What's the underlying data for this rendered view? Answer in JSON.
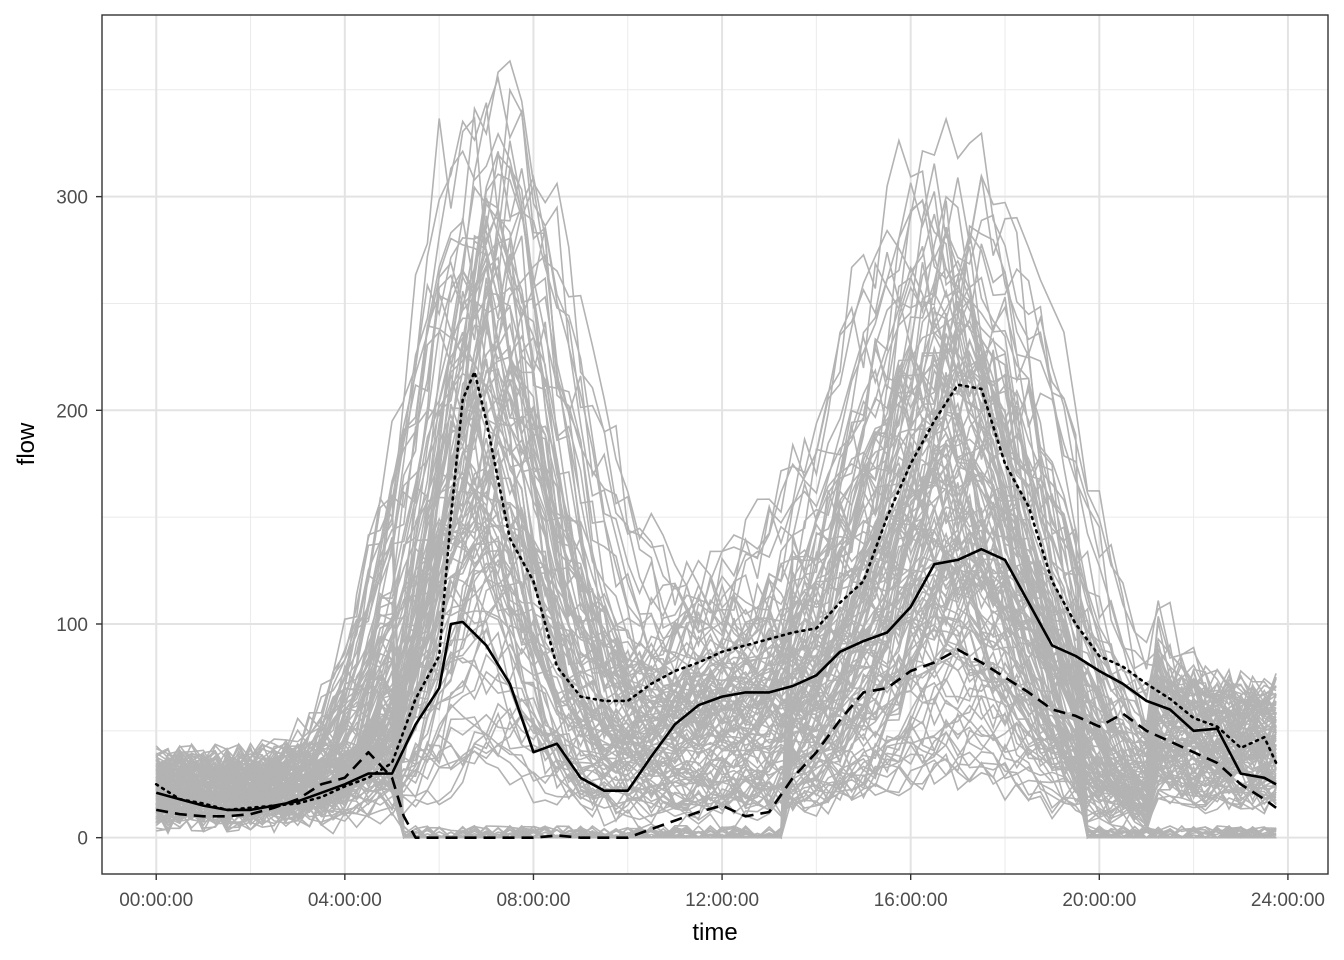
{
  "chart_data": {
    "type": "line",
    "xlabel": "time",
    "ylabel": "flow",
    "x_tick_labels": [
      "00:00:00",
      "04:00:00",
      "08:00:00",
      "12:00:00",
      "16:00:00",
      "20:00:00",
      "24:00:00"
    ],
    "x_tick_hours": [
      0,
      4,
      8,
      12,
      16,
      20,
      24
    ],
    "y_tick_labels": [
      "0",
      "100",
      "200",
      "300"
    ],
    "y_tick_values": [
      0,
      100,
      200,
      300
    ],
    "xlim_hours": [
      -1.15,
      24.85
    ],
    "ylim": [
      -17,
      385
    ],
    "grid": true,
    "background_series": {
      "description": "many daily flow profiles drawn in light grey",
      "color": "#b3b3b3",
      "count": 140
    },
    "summary_series": [
      {
        "style": "solid",
        "color": "#000000",
        "x_hours": [
          0,
          0.5,
          1,
          1.5,
          2,
          2.5,
          3,
          3.5,
          4,
          4.5,
          5,
          5.5,
          6,
          6.25,
          6.5,
          7,
          7.5,
          8,
          8.5,
          9,
          9.5,
          10,
          10.5,
          11,
          11.5,
          12,
          12.5,
          13,
          13.5,
          14,
          14.5,
          15,
          15.5,
          16,
          16.5,
          17,
          17.5,
          18,
          18.5,
          19,
          19.5,
          20,
          20.5,
          21,
          21.5,
          22,
          22.5,
          23,
          23.5,
          23.75
        ],
        "values": [
          21,
          18,
          15,
          13,
          13,
          15,
          17,
          21,
          25,
          30,
          30,
          53,
          70,
          100,
          101,
          90,
          72,
          40,
          44,
          28,
          22,
          22,
          38,
          53,
          62,
          66,
          68,
          68,
          71,
          76,
          87,
          92,
          96,
          108,
          128,
          130,
          135,
          130,
          110,
          90,
          85,
          78,
          72,
          64,
          60,
          50,
          51,
          30,
          28,
          25
        ]
      },
      {
        "style": "dotted",
        "color": "#000000",
        "x_hours": [
          0,
          0.5,
          1,
          1.5,
          2,
          2.5,
          3,
          3.5,
          4,
          4.5,
          5,
          5.5,
          6,
          6.25,
          6.5,
          6.75,
          7,
          7.5,
          8,
          8.5,
          9,
          9.5,
          10,
          10.5,
          11,
          11.5,
          12,
          12.5,
          13,
          13.5,
          14,
          14.5,
          15,
          15.5,
          16,
          16.5,
          17,
          17.5,
          18,
          18.5,
          19,
          19.5,
          20,
          20.5,
          21,
          21.5,
          22,
          22.5,
          23,
          23.5,
          23.75
        ],
        "values": [
          25,
          18,
          16,
          13,
          14,
          15,
          16,
          19,
          24,
          28,
          35,
          65,
          85,
          150,
          205,
          218,
          195,
          140,
          120,
          80,
          66,
          64,
          64,
          72,
          78,
          82,
          87,
          90,
          93,
          96,
          98,
          110,
          120,
          150,
          175,
          195,
          212,
          210,
          175,
          155,
          120,
          100,
          85,
          80,
          72,
          65,
          56,
          52,
          42,
          47,
          35
        ]
      },
      {
        "style": "dashed",
        "color": "#000000",
        "x_hours": [
          0,
          0.5,
          1,
          1.5,
          2,
          2.5,
          3,
          3.5,
          4,
          4.5,
          5,
          5.25,
          5.5,
          6,
          6.5,
          7,
          7.5,
          8,
          8.5,
          9,
          9.5,
          10,
          10.5,
          11,
          11.5,
          12,
          12.5,
          13,
          13.5,
          14,
          14.5,
          15,
          15.5,
          16,
          16.5,
          17,
          17.5,
          18,
          18.5,
          19,
          19.5,
          20,
          20.5,
          21,
          21.5,
          22,
          22.5,
          23,
          23.5,
          23.75
        ],
        "values": [
          13,
          11,
          10,
          10,
          11,
          14,
          18,
          25,
          28,
          40,
          28,
          10,
          0,
          0,
          0,
          0,
          0,
          0,
          1,
          0,
          0,
          0,
          4,
          8,
          12,
          15,
          10,
          12,
          28,
          40,
          55,
          68,
          70,
          78,
          82,
          88,
          82,
          75,
          68,
          60,
          57,
          52,
          58,
          50,
          45,
          40,
          35,
          25,
          18,
          14
        ]
      }
    ]
  }
}
